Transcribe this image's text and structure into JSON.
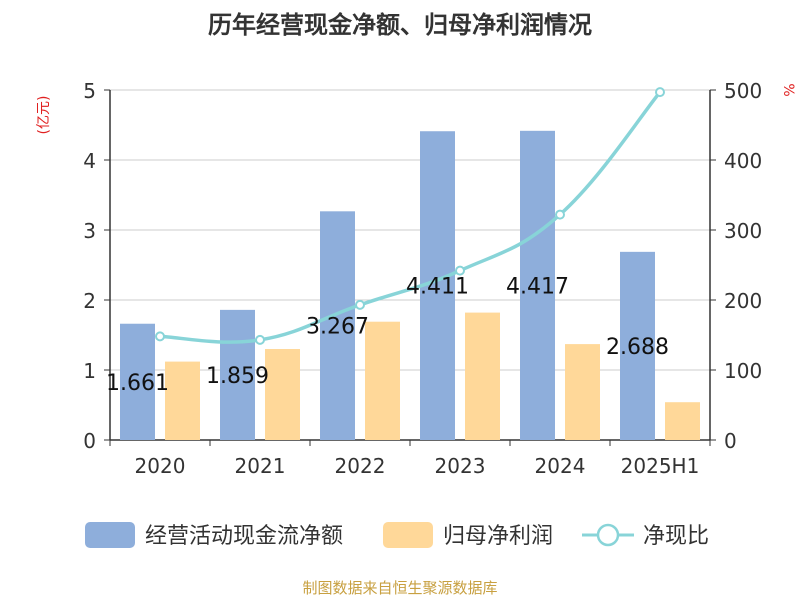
{
  "chart_data": {
    "type": "bar",
    "title": "历年经营现金净额、归母净利润情况",
    "categories": [
      "2020",
      "2021",
      "2022",
      "2023",
      "2024",
      "2025H1"
    ],
    "left_axis": {
      "label": "(亿元)",
      "ticks": [
        "0",
        "1",
        "2",
        "3",
        "4",
        "5"
      ],
      "range": [
        0,
        5
      ]
    },
    "right_axis": {
      "label": "%",
      "ticks": [
        "0",
        "100",
        "200",
        "300",
        "400",
        "500"
      ],
      "range": [
        0,
        500
      ]
    },
    "grid": true,
    "legend_position": "bottom",
    "series": [
      {
        "name": "经营活动现金流净额",
        "kind": "bar",
        "axis": "left",
        "color": "#8eaedb",
        "values": [
          1.661,
          1.859,
          3.267,
          4.411,
          4.417,
          2.688
        ],
        "data_labels": [
          "1.661",
          "1.859",
          "3.267",
          "4.411",
          "4.417",
          "2.688"
        ]
      },
      {
        "name": "归母净利润",
        "kind": "bar",
        "axis": "left",
        "color": "#ffd899",
        "values": [
          1.12,
          1.3,
          1.69,
          1.82,
          1.37,
          0.54
        ]
      },
      {
        "name": "净现比",
        "kind": "line",
        "axis": "right",
        "color": "#88d4d8",
        "values": [
          148,
          143,
          193,
          242,
          322,
          497
        ]
      }
    ],
    "source": "制图数据来自恒生聚源数据库"
  }
}
